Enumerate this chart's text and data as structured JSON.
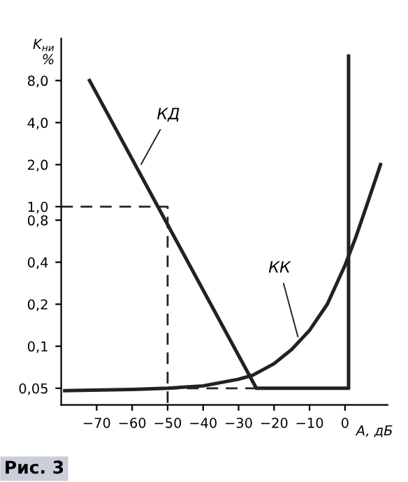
{
  "chart_data": {
    "type": "line",
    "ylabel": "K$_{ни}$\n%",
    "xlabel": "A, дБ",
    "log": "y",
    "xlim": [
      -80,
      12
    ],
    "ylim": [
      0.038,
      16
    ],
    "xticks": [
      {
        "value": -70,
        "label": "−70"
      },
      {
        "value": -60,
        "label": "−60"
      },
      {
        "value": -50,
        "label": "−50"
      },
      {
        "value": -40,
        "label": "−40"
      },
      {
        "value": -30,
        "label": "−30"
      },
      {
        "value": -20,
        "label": "−20"
      },
      {
        "value": -10,
        "label": "−10"
      },
      0
    ],
    "yticks": [
      {
        "value": 0.05,
        "label": "0,05"
      },
      {
        "value": 0.1,
        "label": "0,1"
      },
      {
        "value": 0.2,
        "label": "0,2"
      },
      {
        "value": 0.4,
        "label": "0,4"
      },
      {
        "value": 0.8,
        "label": "0,8"
      },
      {
        "value": 1.0,
        "label": "1,0"
      },
      {
        "value": 2.0,
        "label": "2,0"
      },
      {
        "value": 4.0,
        "label": "4,0"
      },
      {
        "value": 8.0,
        "label": "8,0"
      }
    ],
    "grid": false,
    "series": [
      {
        "color": "#222222",
        "line_style": "solid",
        "x": [
          -72,
          -25,
          1,
          1
        ],
        "values": [
          8.0,
          0.05,
          0.05,
          12
        ]
      },
      {
        "color": "#222222",
        "line_style": "solid",
        "x": [
          -79,
          -60,
          -50,
          -40,
          -30,
          -26,
          -20,
          -15,
          -10,
          -5,
          0,
          3,
          6,
          10
        ],
        "values": [
          0.048,
          0.049,
          0.05,
          0.052,
          0.058,
          0.062,
          0.075,
          0.095,
          0.13,
          0.2,
          0.38,
          0.6,
          1.0,
          2.0
        ]
      },
      {
        "color": "#222222",
        "line_style": "dashed",
        "x": [
          -80,
          -50,
          -50
        ],
        "values": [
          1.0,
          1.0,
          0.038
        ]
      },
      {
        "color": "#222222",
        "line_style": "dashed",
        "x": [
          -50,
          -25
        ],
        "values": [
          0.05,
          0.05
        ]
      }
    ],
    "annotations": [
      {
        "text": "КД",
        "x": -58,
        "y": 1.9
      },
      {
        "text": "КК",
        "x": -13,
        "y": 0.11
      },
      "Рис. 3"
    ]
  }
}
